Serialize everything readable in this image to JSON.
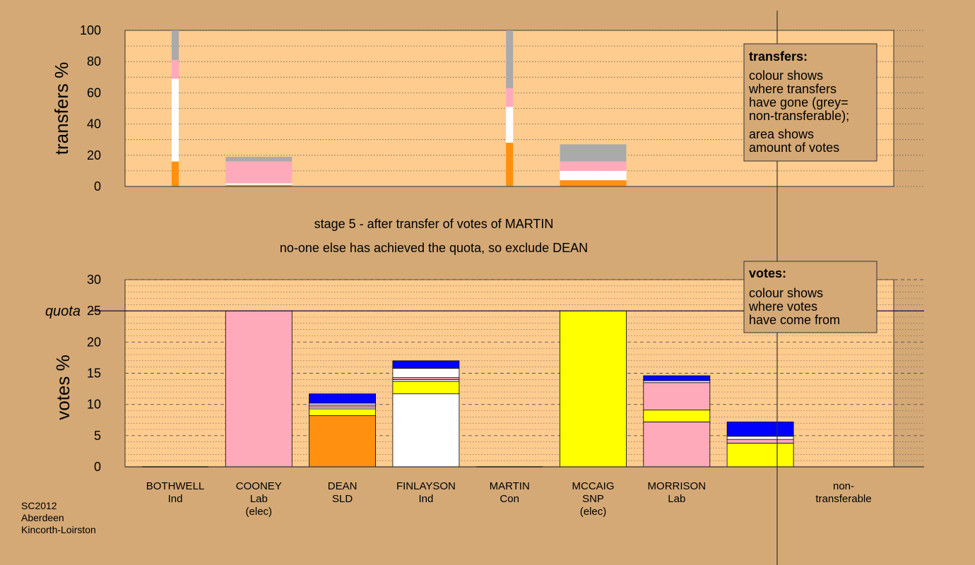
{
  "captions": {
    "line1": "stage 5 - after transfer of votes of MARTIN",
    "line2": "no-one else has achieved the quota, so exclude DEAN"
  },
  "footer": [
    "SC2012",
    "Aberdeen",
    "Kincorth-Loirston"
  ],
  "colors": {
    "background": "#d4a976",
    "plot_bg": "#ffcc8f",
    "grey": "#aaaaaa",
    "pink": "#ffaabb",
    "white": "#ffffff",
    "orange": "#ff9010",
    "yellow": "#ffff00",
    "blue": "#0000ff",
    "quota_line": "#000044"
  },
  "candidates": [
    {
      "name": "BOTHWELL",
      "party": "Ind",
      "status": ""
    },
    {
      "name": "COONEY",
      "party": "Lab",
      "status": "(elec)"
    },
    {
      "name": "DEAN",
      "party": "SLD",
      "status": ""
    },
    {
      "name": "FINLAYSON",
      "party": "Ind",
      "status": ""
    },
    {
      "name": "MARTIN",
      "party": "Con",
      "status": ""
    },
    {
      "name": "MCCAIG",
      "party": "SNP",
      "status": "(elec)"
    },
    {
      "name": "MORRISON",
      "party": "Lab",
      "status": ""
    },
    {
      "name": "non-",
      "party": "transferable",
      "status": ""
    }
  ],
  "chart_data": [
    {
      "type": "bar",
      "stacked": true,
      "ylabel": "transfers %",
      "ylim": [
        0,
        100
      ],
      "yticks": [
        0,
        20,
        40,
        60,
        80,
        100
      ],
      "legend": {
        "title": "transfers:",
        "lines": [
          "colour shows",
          "where transfers",
          "have gone (grey=",
          "non-transferable);",
          "area shows",
          "amount of votes"
        ],
        "placement": "top-right"
      },
      "bars": [
        {
          "slot": 0,
          "width": "narrow",
          "segments": [
            {
              "color": "orange",
              "value": 16
            },
            {
              "color": "white",
              "value": 53
            },
            {
              "color": "pink",
              "value": 12
            },
            {
              "color": "grey",
              "value": 19
            }
          ]
        },
        {
          "slot": 1,
          "width": "wide",
          "segments": [
            {
              "color": "orange",
              "value": 1
            },
            {
              "color": "white",
              "value": 1
            },
            {
              "color": "pink",
              "value": 14
            },
            {
              "color": "grey",
              "value": 3
            }
          ]
        },
        {
          "slot": 4,
          "width": "narrow",
          "segments": [
            {
              "color": "orange",
              "value": 28
            },
            {
              "color": "white",
              "value": 23
            },
            {
              "color": "pink",
              "value": 12
            },
            {
              "color": "grey",
              "value": 37
            }
          ]
        },
        {
          "slot": 5,
          "width": "wide",
          "segments": [
            {
              "color": "orange",
              "value": 4
            },
            {
              "color": "white",
              "value": 6
            },
            {
              "color": "pink",
              "value": 6
            },
            {
              "color": "grey",
              "value": 11
            }
          ]
        }
      ]
    },
    {
      "type": "bar",
      "stacked": true,
      "ylabel": "votes %",
      "ylim": [
        0,
        30
      ],
      "yticks": [
        0,
        5,
        10,
        15,
        20,
        25,
        30
      ],
      "quota": {
        "label": "quota",
        "value": 25
      },
      "legend": {
        "title": "votes:",
        "lines": [
          "colour shows",
          "where votes",
          "have come from"
        ],
        "placement": "top-right"
      },
      "bars": [
        {
          "slot": 0,
          "segments": []
        },
        {
          "slot": 1,
          "segments": [
            {
              "color": "pink",
              "value": 25
            }
          ]
        },
        {
          "slot": 2,
          "segments": [
            {
              "color": "orange",
              "value": 8.2
            },
            {
              "color": "yellow",
              "value": 1.1
            },
            {
              "color": "white",
              "value": 0.3
            },
            {
              "color": "pink",
              "value": 0.3
            },
            {
              "color": "white",
              "value": 0.3
            },
            {
              "color": "blue",
              "value": 1.5
            }
          ]
        },
        {
          "slot": 3,
          "segments": [
            {
              "color": "white",
              "value": 11.7
            },
            {
              "color": "yellow",
              "value": 2.0
            },
            {
              "color": "white",
              "value": 0.3
            },
            {
              "color": "pink",
              "value": 0.3
            },
            {
              "color": "white",
              "value": 1.5
            },
            {
              "color": "blue",
              "value": 1.2
            }
          ]
        },
        {
          "slot": 4,
          "segments": []
        },
        {
          "slot": 5,
          "segments": [
            {
              "color": "yellow",
              "value": 25
            }
          ]
        },
        {
          "slot": 6,
          "segments": [
            {
              "color": "pink",
              "value": 7.2
            },
            {
              "color": "yellow",
              "value": 1.9
            },
            {
              "color": "pink",
              "value": 4.4
            },
            {
              "color": "white",
              "value": 0.3
            },
            {
              "color": "blue",
              "value": 0.8
            }
          ]
        },
        {
          "slot": 7,
          "segments": [
            {
              "color": "yellow",
              "value": 3.8
            },
            {
              "color": "pink",
              "value": 0.6
            },
            {
              "color": "white",
              "value": 0.5
            },
            {
              "color": "blue",
              "value": 2.3
            }
          ]
        }
      ]
    }
  ]
}
